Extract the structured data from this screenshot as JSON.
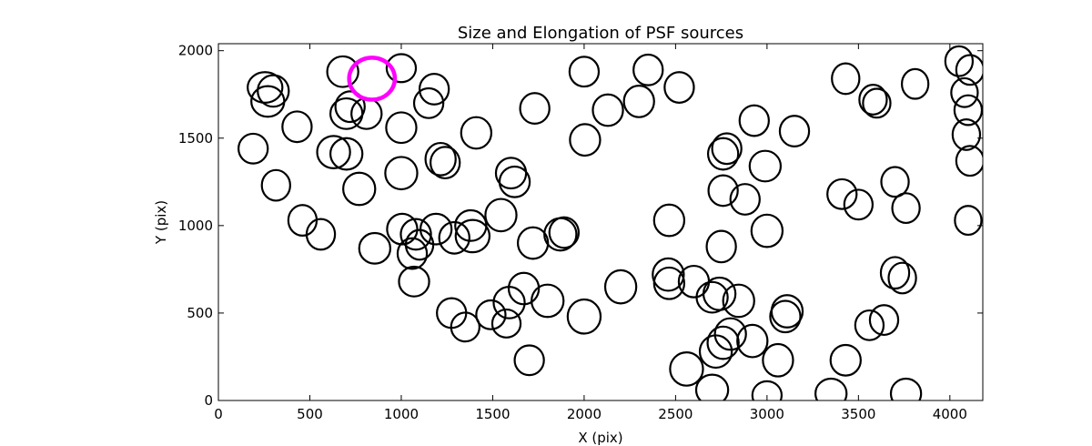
{
  "chart_data": {
    "type": "scatter",
    "marker": "ellipse",
    "title": "Size and Elongation of PSF sources",
    "xlabel": "X (pix)",
    "ylabel": "Y (pix)",
    "xlim": [
      0,
      4180
    ],
    "ylim": [
      0,
      2040
    ],
    "xticks": [
      0,
      500,
      1000,
      1500,
      2000,
      2500,
      3000,
      3500,
      4000
    ],
    "yticks": [
      0,
      500,
      1000,
      1500,
      2000
    ],
    "grid": false,
    "colors": {
      "sources": "#000000",
      "highlight": "#ff00ff"
    },
    "highlight": {
      "x": 840,
      "y": 1840,
      "w": 250,
      "h": 240
    },
    "sources": [
      {
        "x": 255,
        "y": 1790,
        "w": 190,
        "h": 175
      },
      {
        "x": 300,
        "y": 1770,
        "w": 170,
        "h": 180
      },
      {
        "x": 270,
        "y": 1710,
        "w": 180,
        "h": 175
      },
      {
        "x": 430,
        "y": 1565,
        "w": 160,
        "h": 175
      },
      {
        "x": 190,
        "y": 1440,
        "w": 160,
        "h": 170
      },
      {
        "x": 315,
        "y": 1230,
        "w": 155,
        "h": 175
      },
      {
        "x": 460,
        "y": 1030,
        "w": 155,
        "h": 175
      },
      {
        "x": 560,
        "y": 950,
        "w": 155,
        "h": 175
      },
      {
        "x": 680,
        "y": 1880,
        "w": 170,
        "h": 175
      },
      {
        "x": 700,
        "y": 1640,
        "w": 175,
        "h": 175
      },
      {
        "x": 720,
        "y": 1680,
        "w": 160,
        "h": 175
      },
      {
        "x": 810,
        "y": 1640,
        "w": 165,
        "h": 175
      },
      {
        "x": 1000,
        "y": 1900,
        "w": 160,
        "h": 160
      },
      {
        "x": 1180,
        "y": 1780,
        "w": 160,
        "h": 175
      },
      {
        "x": 1150,
        "y": 1700,
        "w": 160,
        "h": 170
      },
      {
        "x": 1000,
        "y": 1560,
        "w": 165,
        "h": 175
      },
      {
        "x": 630,
        "y": 1420,
        "w": 180,
        "h": 185
      },
      {
        "x": 700,
        "y": 1410,
        "w": 175,
        "h": 180
      },
      {
        "x": 770,
        "y": 1210,
        "w": 175,
        "h": 185
      },
      {
        "x": 1000,
        "y": 1300,
        "w": 175,
        "h": 185
      },
      {
        "x": 1215,
        "y": 1380,
        "w": 165,
        "h": 185
      },
      {
        "x": 1240,
        "y": 1360,
        "w": 160,
        "h": 180
      },
      {
        "x": 1410,
        "y": 1530,
        "w": 165,
        "h": 180
      },
      {
        "x": 1600,
        "y": 1300,
        "w": 165,
        "h": 175
      },
      {
        "x": 1620,
        "y": 1250,
        "w": 165,
        "h": 175
      },
      {
        "x": 1730,
        "y": 1670,
        "w": 160,
        "h": 175
      },
      {
        "x": 1545,
        "y": 1060,
        "w": 170,
        "h": 185
      },
      {
        "x": 1005,
        "y": 980,
        "w": 165,
        "h": 175
      },
      {
        "x": 1080,
        "y": 950,
        "w": 165,
        "h": 175
      },
      {
        "x": 1100,
        "y": 890,
        "w": 150,
        "h": 170
      },
      {
        "x": 1190,
        "y": 980,
        "w": 170,
        "h": 175
      },
      {
        "x": 1380,
        "y": 1000,
        "w": 170,
        "h": 175
      },
      {
        "x": 1390,
        "y": 940,
        "w": 185,
        "h": 185
      },
      {
        "x": 1290,
        "y": 930,
        "w": 165,
        "h": 180
      },
      {
        "x": 1060,
        "y": 840,
        "w": 160,
        "h": 175
      },
      {
        "x": 855,
        "y": 870,
        "w": 170,
        "h": 175
      },
      {
        "x": 1070,
        "y": 680,
        "w": 165,
        "h": 170
      },
      {
        "x": 1275,
        "y": 500,
        "w": 160,
        "h": 170
      },
      {
        "x": 1350,
        "y": 420,
        "w": 155,
        "h": 165
      },
      {
        "x": 1490,
        "y": 490,
        "w": 160,
        "h": 165
      },
      {
        "x": 1575,
        "y": 440,
        "w": 155,
        "h": 160
      },
      {
        "x": 1590,
        "y": 560,
        "w": 170,
        "h": 180
      },
      {
        "x": 1670,
        "y": 640,
        "w": 165,
        "h": 180
      },
      {
        "x": 1800,
        "y": 570,
        "w": 175,
        "h": 185
      },
      {
        "x": 2000,
        "y": 480,
        "w": 180,
        "h": 195
      },
      {
        "x": 1700,
        "y": 230,
        "w": 160,
        "h": 170
      },
      {
        "x": 1720,
        "y": 900,
        "w": 165,
        "h": 180
      },
      {
        "x": 1870,
        "y": 950,
        "w": 175,
        "h": 185
      },
      {
        "x": 1890,
        "y": 960,
        "w": 160,
        "h": 175
      },
      {
        "x": 2005,
        "y": 1490,
        "w": 165,
        "h": 180
      },
      {
        "x": 2130,
        "y": 1660,
        "w": 165,
        "h": 180
      },
      {
        "x": 2000,
        "y": 1880,
        "w": 160,
        "h": 170
      },
      {
        "x": 2350,
        "y": 1890,
        "w": 160,
        "h": 175
      },
      {
        "x": 2300,
        "y": 1710,
        "w": 165,
        "h": 180
      },
      {
        "x": 2520,
        "y": 1790,
        "w": 160,
        "h": 175
      },
      {
        "x": 2200,
        "y": 650,
        "w": 170,
        "h": 190
      },
      {
        "x": 2465,
        "y": 1030,
        "w": 165,
        "h": 180
      },
      {
        "x": 2460,
        "y": 720,
        "w": 170,
        "h": 185
      },
      {
        "x": 2465,
        "y": 670,
        "w": 165,
        "h": 180
      },
      {
        "x": 2600,
        "y": 680,
        "w": 165,
        "h": 180
      },
      {
        "x": 2700,
        "y": 590,
        "w": 170,
        "h": 175
      },
      {
        "x": 2740,
        "y": 610,
        "w": 175,
        "h": 185
      },
      {
        "x": 2845,
        "y": 570,
        "w": 170,
        "h": 185
      },
      {
        "x": 2750,
        "y": 880,
        "w": 160,
        "h": 180
      },
      {
        "x": 2760,
        "y": 1200,
        "w": 160,
        "h": 175
      },
      {
        "x": 2780,
        "y": 1440,
        "w": 160,
        "h": 175
      },
      {
        "x": 2760,
        "y": 1410,
        "w": 165,
        "h": 180
      },
      {
        "x": 2930,
        "y": 1600,
        "w": 160,
        "h": 175
      },
      {
        "x": 3150,
        "y": 1540,
        "w": 160,
        "h": 175
      },
      {
        "x": 2990,
        "y": 1340,
        "w": 170,
        "h": 175
      },
      {
        "x": 2880,
        "y": 1150,
        "w": 160,
        "h": 175
      },
      {
        "x": 3000,
        "y": 970,
        "w": 170,
        "h": 185
      },
      {
        "x": 3110,
        "y": 510,
        "w": 170,
        "h": 185
      },
      {
        "x": 3100,
        "y": 480,
        "w": 165,
        "h": 180
      },
      {
        "x": 2720,
        "y": 280,
        "w": 175,
        "h": 185
      },
      {
        "x": 2760,
        "y": 330,
        "w": 170,
        "h": 185
      },
      {
        "x": 2800,
        "y": 380,
        "w": 170,
        "h": 180
      },
      {
        "x": 2920,
        "y": 340,
        "w": 165,
        "h": 185
      },
      {
        "x": 3060,
        "y": 230,
        "w": 165,
        "h": 185
      },
      {
        "x": 2560,
        "y": 180,
        "w": 180,
        "h": 190
      },
      {
        "x": 2700,
        "y": 60,
        "w": 175,
        "h": 175
      },
      {
        "x": 3000,
        "y": 30,
        "w": 160,
        "h": 160
      },
      {
        "x": 3350,
        "y": 40,
        "w": 170,
        "h": 170
      },
      {
        "x": 3430,
        "y": 230,
        "w": 165,
        "h": 175
      },
      {
        "x": 3560,
        "y": 430,
        "w": 155,
        "h": 170
      },
      {
        "x": 3640,
        "y": 460,
        "w": 155,
        "h": 170
      },
      {
        "x": 3700,
        "y": 730,
        "w": 155,
        "h": 180
      },
      {
        "x": 3740,
        "y": 700,
        "w": 150,
        "h": 175
      },
      {
        "x": 3760,
        "y": 40,
        "w": 165,
        "h": 170
      },
      {
        "x": 3410,
        "y": 1180,
        "w": 160,
        "h": 170
      },
      {
        "x": 3500,
        "y": 1120,
        "w": 155,
        "h": 170
      },
      {
        "x": 3700,
        "y": 1250,
        "w": 150,
        "h": 170
      },
      {
        "x": 3760,
        "y": 1100,
        "w": 150,
        "h": 170
      },
      {
        "x": 3430,
        "y": 1840,
        "w": 150,
        "h": 175
      },
      {
        "x": 3580,
        "y": 1720,
        "w": 150,
        "h": 170
      },
      {
        "x": 3600,
        "y": 1700,
        "w": 150,
        "h": 165
      },
      {
        "x": 3810,
        "y": 1810,
        "w": 145,
        "h": 170
      },
      {
        "x": 4050,
        "y": 1940,
        "w": 150,
        "h": 170
      },
      {
        "x": 4110,
        "y": 1890,
        "w": 150,
        "h": 170
      },
      {
        "x": 4080,
        "y": 1760,
        "w": 145,
        "h": 165
      },
      {
        "x": 4100,
        "y": 1660,
        "w": 150,
        "h": 170
      },
      {
        "x": 4090,
        "y": 1520,
        "w": 150,
        "h": 175
      },
      {
        "x": 4110,
        "y": 1370,
        "w": 150,
        "h": 170
      },
      {
        "x": 4100,
        "y": 1030,
        "w": 145,
        "h": 165
      }
    ]
  }
}
